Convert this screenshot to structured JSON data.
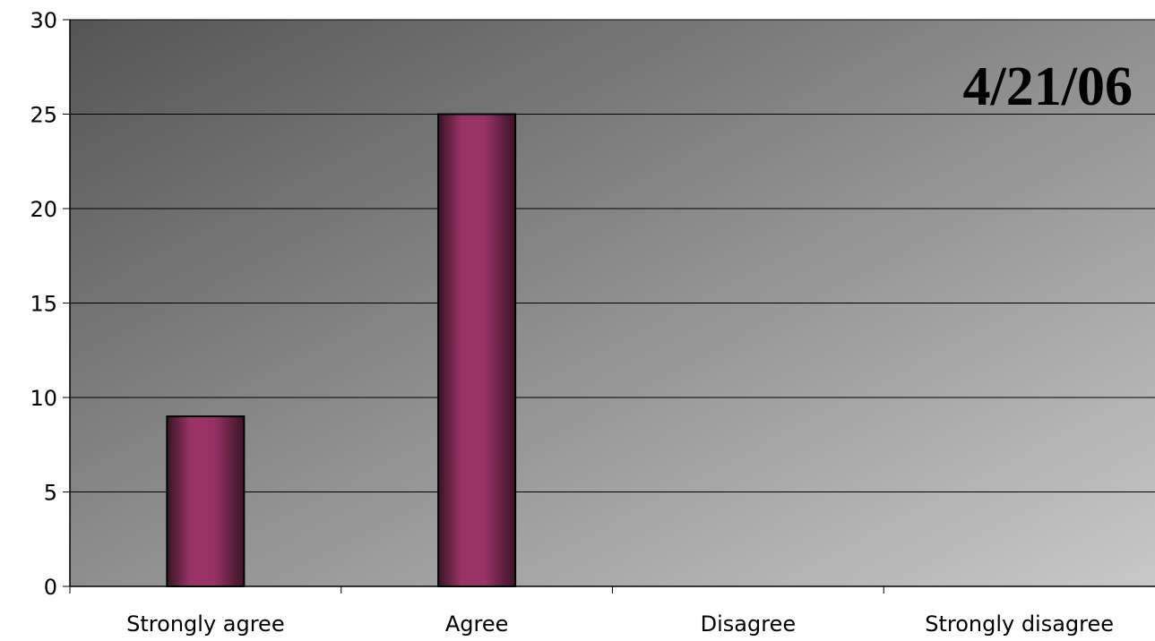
{
  "chart_data": {
    "type": "bar",
    "categories": [
      "Strongly agree",
      "Agree",
      "Disagree",
      "Strongly disagree"
    ],
    "values": [
      9,
      25,
      0,
      0
    ],
    "annotation": "4/21/06",
    "ylim": [
      0,
      30
    ],
    "yticks": [
      0,
      5,
      10,
      15,
      20,
      25,
      30
    ],
    "grid": true,
    "legend": "none"
  },
  "colors": {
    "bar_main": "#993366",
    "bar_dark": "#3a1426",
    "plot_bg_dark": "#555555",
    "plot_bg_light": "#c8c8c8"
  }
}
